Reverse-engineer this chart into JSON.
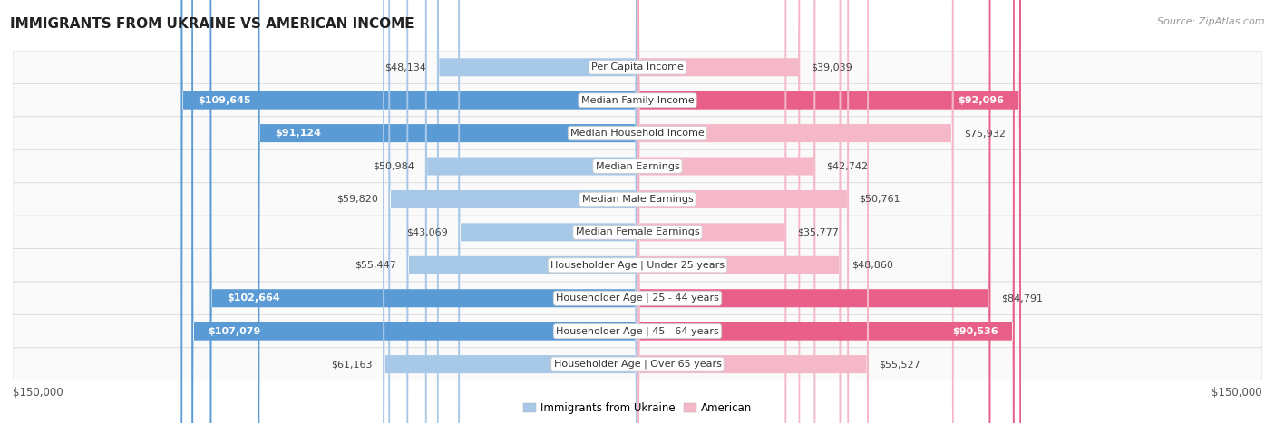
{
  "title": "IMMIGRANTS FROM UKRAINE VS AMERICAN INCOME",
  "source": "Source: ZipAtlas.com",
  "categories": [
    "Per Capita Income",
    "Median Family Income",
    "Median Household Income",
    "Median Earnings",
    "Median Male Earnings",
    "Median Female Earnings",
    "Householder Age | Under 25 years",
    "Householder Age | 25 - 44 years",
    "Householder Age | 45 - 64 years",
    "Householder Age | Over 65 years"
  ],
  "ukraine_values": [
    48134,
    109645,
    91124,
    50984,
    59820,
    43069,
    55447,
    102664,
    107079,
    61163
  ],
  "american_values": [
    39039,
    92096,
    75932,
    42742,
    50761,
    35777,
    48860,
    84791,
    90536,
    55527
  ],
  "ukraine_labels": [
    "$48,134",
    "$109,645",
    "$91,124",
    "$50,984",
    "$59,820",
    "$43,069",
    "$55,447",
    "$102,664",
    "$107,079",
    "$61,163"
  ],
  "american_labels": [
    "$39,039",
    "$92,096",
    "$75,932",
    "$42,742",
    "$50,761",
    "$35,777",
    "$48,860",
    "$84,791",
    "$90,536",
    "$55,527"
  ],
  "ukraine_color_light": "#a8c8e8",
  "ukraine_color_dark": "#5b9bd5",
  "american_color_light": "#f5b8c8",
  "american_color_dark": "#e8608a",
  "ukraine_label_white": [
    false,
    true,
    true,
    false,
    false,
    false,
    false,
    true,
    true,
    false
  ],
  "american_label_white": [
    false,
    true,
    false,
    false,
    false,
    false,
    false,
    false,
    true,
    false
  ],
  "max_value": 150000,
  "background_color": "#ffffff",
  "row_bg_odd": "#f7f7f7",
  "row_bg_even": "#ffffff",
  "title_fontsize": 11,
  "source_fontsize": 8,
  "label_fontsize": 8,
  "category_fontsize": 8,
  "axis_label_fontsize": 8.5
}
